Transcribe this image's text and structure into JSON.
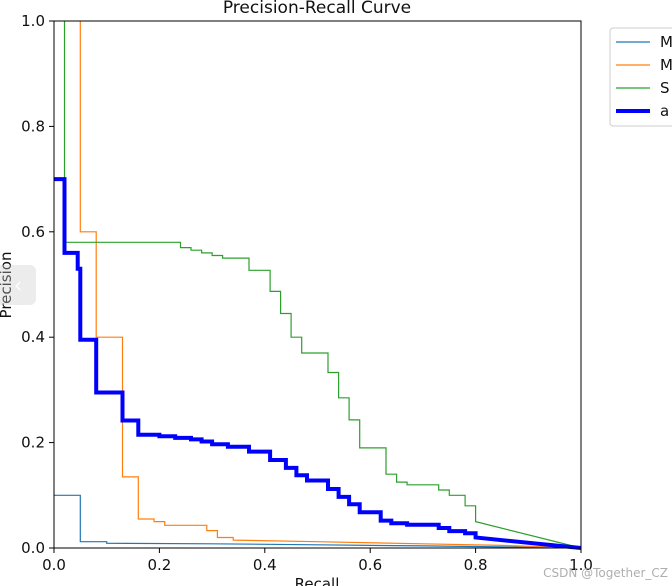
{
  "watermark": "CSDN @Together_CZ",
  "nav_overlay": {
    "glyph": "‹"
  },
  "chart_data": {
    "type": "line",
    "title": "Precision-Recall Curve",
    "xlabel": "Recall",
    "ylabel": "Precision",
    "xlim": [
      0,
      1
    ],
    "ylim": [
      0,
      1
    ],
    "xticks": [
      "0.0",
      "0.2",
      "0.4",
      "0.6",
      "0.8",
      "1.0"
    ],
    "yticks": [
      "0.0",
      "0.2",
      "0.4",
      "0.6",
      "0.8",
      "1.0"
    ],
    "grid": false,
    "legend_position": "outside-top-right",
    "series": [
      {
        "name": "M",
        "color": "#1f77b4",
        "points": [
          [
            0,
            0.1
          ],
          [
            0.05,
            0.1
          ],
          [
            0.05,
            0.012
          ],
          [
            0.1,
            0.012
          ],
          [
            0.1,
            0.009
          ],
          [
            0.3,
            0.008
          ],
          [
            0.5,
            0.006
          ],
          [
            0.7,
            0.004
          ],
          [
            0.85,
            0.002
          ],
          [
            1.0,
            0.0
          ]
        ]
      },
      {
        "name": "M",
        "color": "#ff7f0e",
        "points": [
          [
            0.05,
            1.0
          ],
          [
            0.05,
            0.6
          ],
          [
            0.08,
            0.6
          ],
          [
            0.08,
            0.4
          ],
          [
            0.13,
            0.4
          ],
          [
            0.13,
            0.135
          ],
          [
            0.16,
            0.135
          ],
          [
            0.16,
            0.055
          ],
          [
            0.19,
            0.055
          ],
          [
            0.19,
            0.05
          ],
          [
            0.21,
            0.05
          ],
          [
            0.21,
            0.043
          ],
          [
            0.29,
            0.043
          ],
          [
            0.29,
            0.033
          ],
          [
            0.31,
            0.033
          ],
          [
            0.31,
            0.02
          ],
          [
            0.34,
            0.02
          ],
          [
            0.34,
            0.015
          ],
          [
            0.5,
            0.012
          ],
          [
            0.7,
            0.008
          ],
          [
            0.85,
            0.005
          ],
          [
            1.0,
            0.0
          ]
        ]
      },
      {
        "name": "S",
        "color": "#2ca02c",
        "points": [
          [
            0.02,
            1.0
          ],
          [
            0.02,
            0.58
          ],
          [
            0.24,
            0.58
          ],
          [
            0.24,
            0.57
          ],
          [
            0.26,
            0.57
          ],
          [
            0.26,
            0.565
          ],
          [
            0.28,
            0.565
          ],
          [
            0.28,
            0.56
          ],
          [
            0.3,
            0.56
          ],
          [
            0.3,
            0.555
          ],
          [
            0.32,
            0.555
          ],
          [
            0.32,
            0.55
          ],
          [
            0.37,
            0.55
          ],
          [
            0.37,
            0.527
          ],
          [
            0.41,
            0.527
          ],
          [
            0.41,
            0.487
          ],
          [
            0.43,
            0.487
          ],
          [
            0.43,
            0.445
          ],
          [
            0.45,
            0.445
          ],
          [
            0.45,
            0.4
          ],
          [
            0.47,
            0.4
          ],
          [
            0.47,
            0.37
          ],
          [
            0.52,
            0.37
          ],
          [
            0.52,
            0.333
          ],
          [
            0.54,
            0.333
          ],
          [
            0.54,
            0.285
          ],
          [
            0.56,
            0.285
          ],
          [
            0.56,
            0.243
          ],
          [
            0.58,
            0.243
          ],
          [
            0.58,
            0.19
          ],
          [
            0.63,
            0.19
          ],
          [
            0.63,
            0.14
          ],
          [
            0.65,
            0.14
          ],
          [
            0.65,
            0.125
          ],
          [
            0.67,
            0.125
          ],
          [
            0.67,
            0.12
          ],
          [
            0.73,
            0.12
          ],
          [
            0.73,
            0.11
          ],
          [
            0.75,
            0.11
          ],
          [
            0.75,
            0.1
          ],
          [
            0.78,
            0.1
          ],
          [
            0.78,
            0.08
          ],
          [
            0.8,
            0.08
          ],
          [
            0.8,
            0.05
          ],
          [
            1.0,
            0.0
          ]
        ]
      },
      {
        "name": "a",
        "color": "#0000ff",
        "bold": true,
        "points": [
          [
            0,
            0.7
          ],
          [
            0.02,
            0.7
          ],
          [
            0.02,
            0.56
          ],
          [
            0.045,
            0.56
          ],
          [
            0.045,
            0.53
          ],
          [
            0.05,
            0.53
          ],
          [
            0.05,
            0.395
          ],
          [
            0.08,
            0.395
          ],
          [
            0.08,
            0.295
          ],
          [
            0.13,
            0.295
          ],
          [
            0.13,
            0.242
          ],
          [
            0.16,
            0.242
          ],
          [
            0.16,
            0.215
          ],
          [
            0.2,
            0.215
          ],
          [
            0.2,
            0.212
          ],
          [
            0.23,
            0.212
          ],
          [
            0.23,
            0.209
          ],
          [
            0.26,
            0.209
          ],
          [
            0.26,
            0.206
          ],
          [
            0.28,
            0.206
          ],
          [
            0.28,
            0.202
          ],
          [
            0.3,
            0.202
          ],
          [
            0.3,
            0.197
          ],
          [
            0.33,
            0.197
          ],
          [
            0.33,
            0.192
          ],
          [
            0.37,
            0.192
          ],
          [
            0.37,
            0.183
          ],
          [
            0.41,
            0.183
          ],
          [
            0.41,
            0.167
          ],
          [
            0.44,
            0.167
          ],
          [
            0.44,
            0.152
          ],
          [
            0.46,
            0.152
          ],
          [
            0.46,
            0.138
          ],
          [
            0.48,
            0.138
          ],
          [
            0.48,
            0.128
          ],
          [
            0.52,
            0.128
          ],
          [
            0.52,
            0.112
          ],
          [
            0.54,
            0.112
          ],
          [
            0.54,
            0.097
          ],
          [
            0.56,
            0.097
          ],
          [
            0.56,
            0.083
          ],
          [
            0.58,
            0.083
          ],
          [
            0.58,
            0.068
          ],
          [
            0.62,
            0.068
          ],
          [
            0.62,
            0.052
          ],
          [
            0.64,
            0.052
          ],
          [
            0.64,
            0.047
          ],
          [
            0.67,
            0.047
          ],
          [
            0.67,
            0.044
          ],
          [
            0.73,
            0.044
          ],
          [
            0.73,
            0.038
          ],
          [
            0.75,
            0.038
          ],
          [
            0.75,
            0.032
          ],
          [
            0.78,
            0.032
          ],
          [
            0.78,
            0.028
          ],
          [
            0.8,
            0.028
          ],
          [
            0.8,
            0.02
          ],
          [
            1.0,
            0.0
          ]
        ]
      }
    ]
  }
}
